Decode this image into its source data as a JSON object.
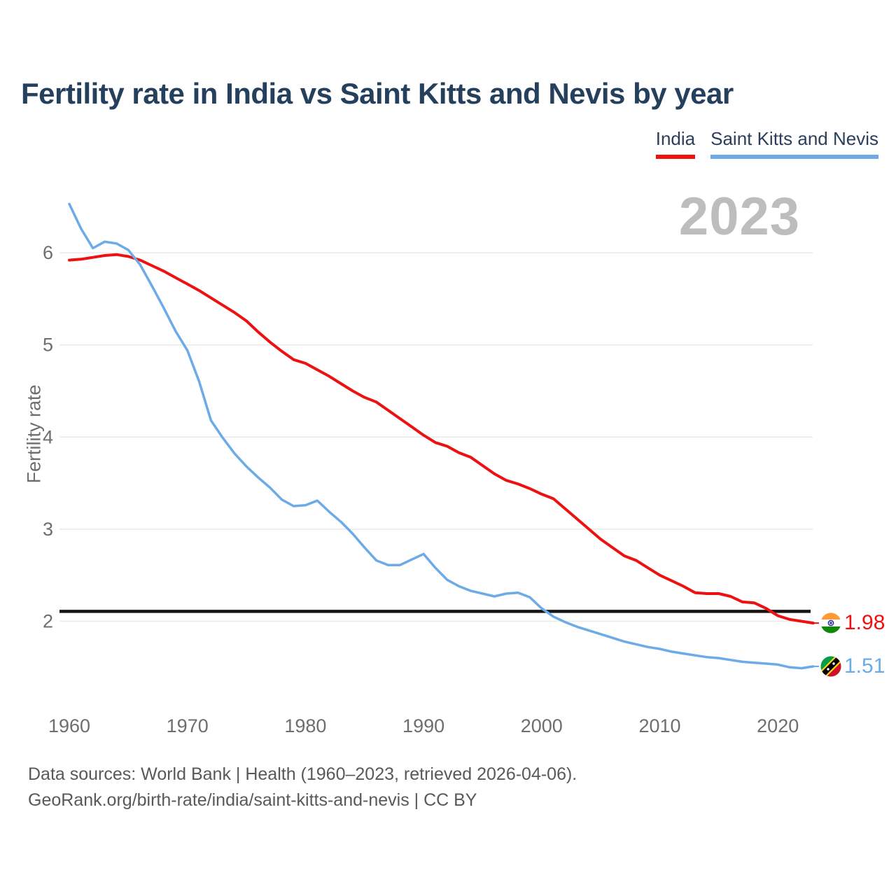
{
  "title": "Fertility rate in India vs Saint Kitts and Nevis by year",
  "watermark_year": "2023",
  "legend": [
    {
      "label": "India",
      "color": "#f01010"
    },
    {
      "label": "Saint Kitts and Nevis",
      "color": "#6cabe8"
    }
  ],
  "footer": {
    "line1": "Data sources: World Bank | Health (1960–2023, retrieved 2026-04-06).",
    "line2": "GeoRank.org/birth-rate/india/saint-kitts-and-nevis | CC BY"
  },
  "chart_data": {
    "type": "line",
    "title": "Fertility rate in India vs Saint Kitts and Nevis by year",
    "xlabel": "",
    "ylabel": "Fertility rate",
    "xlim": [
      1960,
      2023
    ],
    "ylim": [
      1.3,
      6.6
    ],
    "x_ticks": [
      1960,
      1970,
      1980,
      1990,
      2000,
      2010,
      2020
    ],
    "y_ticks": [
      2,
      3,
      4,
      5,
      6
    ],
    "grid": "horizontal",
    "legend_position": "top-right",
    "reference_line": 2.1,
    "x": [
      1960,
      1961,
      1962,
      1963,
      1964,
      1965,
      1966,
      1967,
      1968,
      1969,
      1970,
      1971,
      1972,
      1973,
      1974,
      1975,
      1976,
      1977,
      1978,
      1979,
      1980,
      1981,
      1982,
      1983,
      1984,
      1985,
      1986,
      1987,
      1988,
      1989,
      1990,
      1991,
      1992,
      1993,
      1994,
      1995,
      1996,
      1997,
      1998,
      1999,
      2000,
      2001,
      2002,
      2003,
      2004,
      2005,
      2006,
      2007,
      2008,
      2009,
      2010,
      2011,
      2012,
      2013,
      2014,
      2015,
      2016,
      2017,
      2018,
      2019,
      2020,
      2021,
      2022,
      2023
    ],
    "series": [
      {
        "name": "India",
        "color": "#ee1111",
        "line_width": 4,
        "end_label": "1.98",
        "values": [
          5.92,
          5.93,
          5.95,
          5.97,
          5.98,
          5.96,
          5.92,
          5.86,
          5.8,
          5.73,
          5.66,
          5.59,
          5.51,
          5.43,
          5.35,
          5.26,
          5.14,
          5.03,
          4.93,
          4.84,
          4.8,
          4.73,
          4.66,
          4.58,
          4.5,
          4.43,
          4.38,
          4.29,
          4.2,
          4.11,
          4.02,
          3.94,
          3.9,
          3.83,
          3.78,
          3.69,
          3.6,
          3.53,
          3.49,
          3.44,
          3.38,
          3.33,
          3.22,
          3.11,
          3.0,
          2.89,
          2.8,
          2.71,
          2.66,
          2.58,
          2.5,
          2.44,
          2.38,
          2.31,
          2.3,
          2.3,
          2.27,
          2.21,
          2.2,
          2.14,
          2.06,
          2.02,
          2.0,
          1.98
        ]
      },
      {
        "name": "Saint Kitts and Nevis",
        "color": "#6cabe8",
        "line_width": 3.5,
        "end_label": "1.51",
        "values": [
          6.53,
          6.26,
          6.05,
          6.12,
          6.1,
          6.03,
          5.87,
          5.64,
          5.4,
          5.15,
          4.94,
          4.6,
          4.18,
          3.99,
          3.82,
          3.68,
          3.56,
          3.45,
          3.32,
          3.25,
          3.26,
          3.31,
          3.19,
          3.08,
          2.95,
          2.8,
          2.66,
          2.61,
          2.61,
          2.67,
          2.73,
          2.58,
          2.45,
          2.38,
          2.33,
          2.3,
          2.27,
          2.3,
          2.31,
          2.26,
          2.14,
          2.05,
          1.99,
          1.94,
          1.9,
          1.86,
          1.82,
          1.78,
          1.75,
          1.72,
          1.7,
          1.67,
          1.65,
          1.63,
          1.61,
          1.6,
          1.58,
          1.56,
          1.55,
          1.54,
          1.53,
          1.5,
          1.49,
          1.51
        ]
      }
    ]
  }
}
